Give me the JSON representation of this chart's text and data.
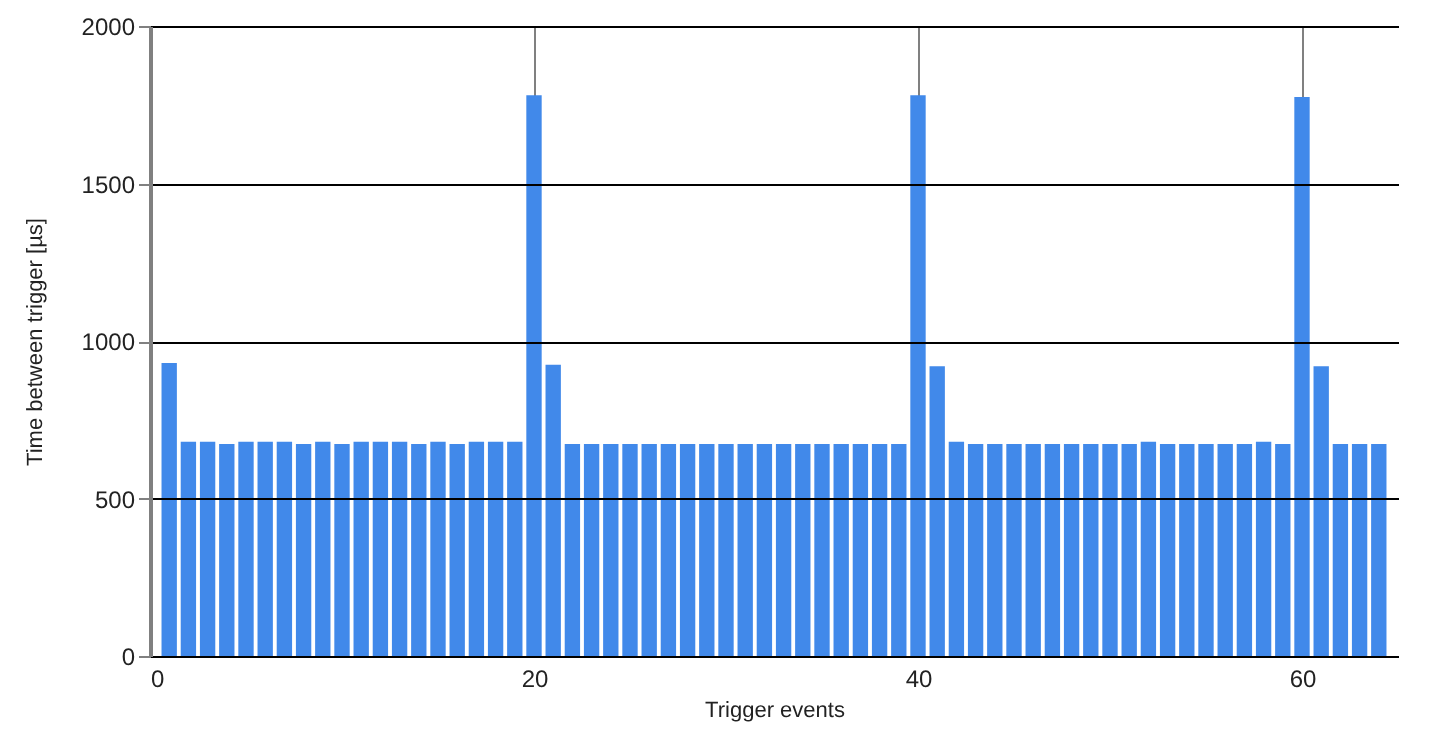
{
  "chart_data": {
    "type": "bar",
    "xlabel": "Trigger events",
    "ylabel": "Time between trigger [µs]",
    "color": "#4189ea",
    "x": [
      1,
      2,
      3,
      4,
      5,
      6,
      7,
      8,
      9,
      10,
      11,
      12,
      13,
      14,
      15,
      16,
      17,
      18,
      19,
      20,
      21,
      22,
      23,
      24,
      25,
      26,
      27,
      28,
      29,
      30,
      31,
      32,
      33,
      34,
      35,
      36,
      37,
      38,
      39,
      40,
      41,
      42,
      43,
      44,
      45,
      46,
      47,
      48,
      49,
      50,
      51,
      52,
      53,
      54,
      55,
      56,
      57,
      58,
      59,
      60,
      61,
      62,
      63,
      64
    ],
    "values": [
      930,
      680,
      680,
      673,
      680,
      680,
      680,
      673,
      680,
      673,
      680,
      680,
      680,
      673,
      680,
      673,
      680,
      680,
      680,
      1780,
      925,
      673,
      673,
      673,
      673,
      673,
      673,
      673,
      673,
      673,
      673,
      673,
      673,
      673,
      673,
      673,
      673,
      673,
      673,
      1780,
      920,
      680,
      673,
      673,
      673,
      673,
      673,
      673,
      673,
      673,
      673,
      680,
      673,
      673,
      673,
      673,
      673,
      680,
      673,
      1775,
      920,
      673,
      673,
      673
    ],
    "xlim": [
      0,
      65
    ],
    "xticks": [
      0,
      20,
      40,
      60
    ],
    "ylim": [
      0,
      2000
    ],
    "yticks": [
      0,
      500,
      1000,
      1500,
      2000
    ],
    "grid": true
  }
}
